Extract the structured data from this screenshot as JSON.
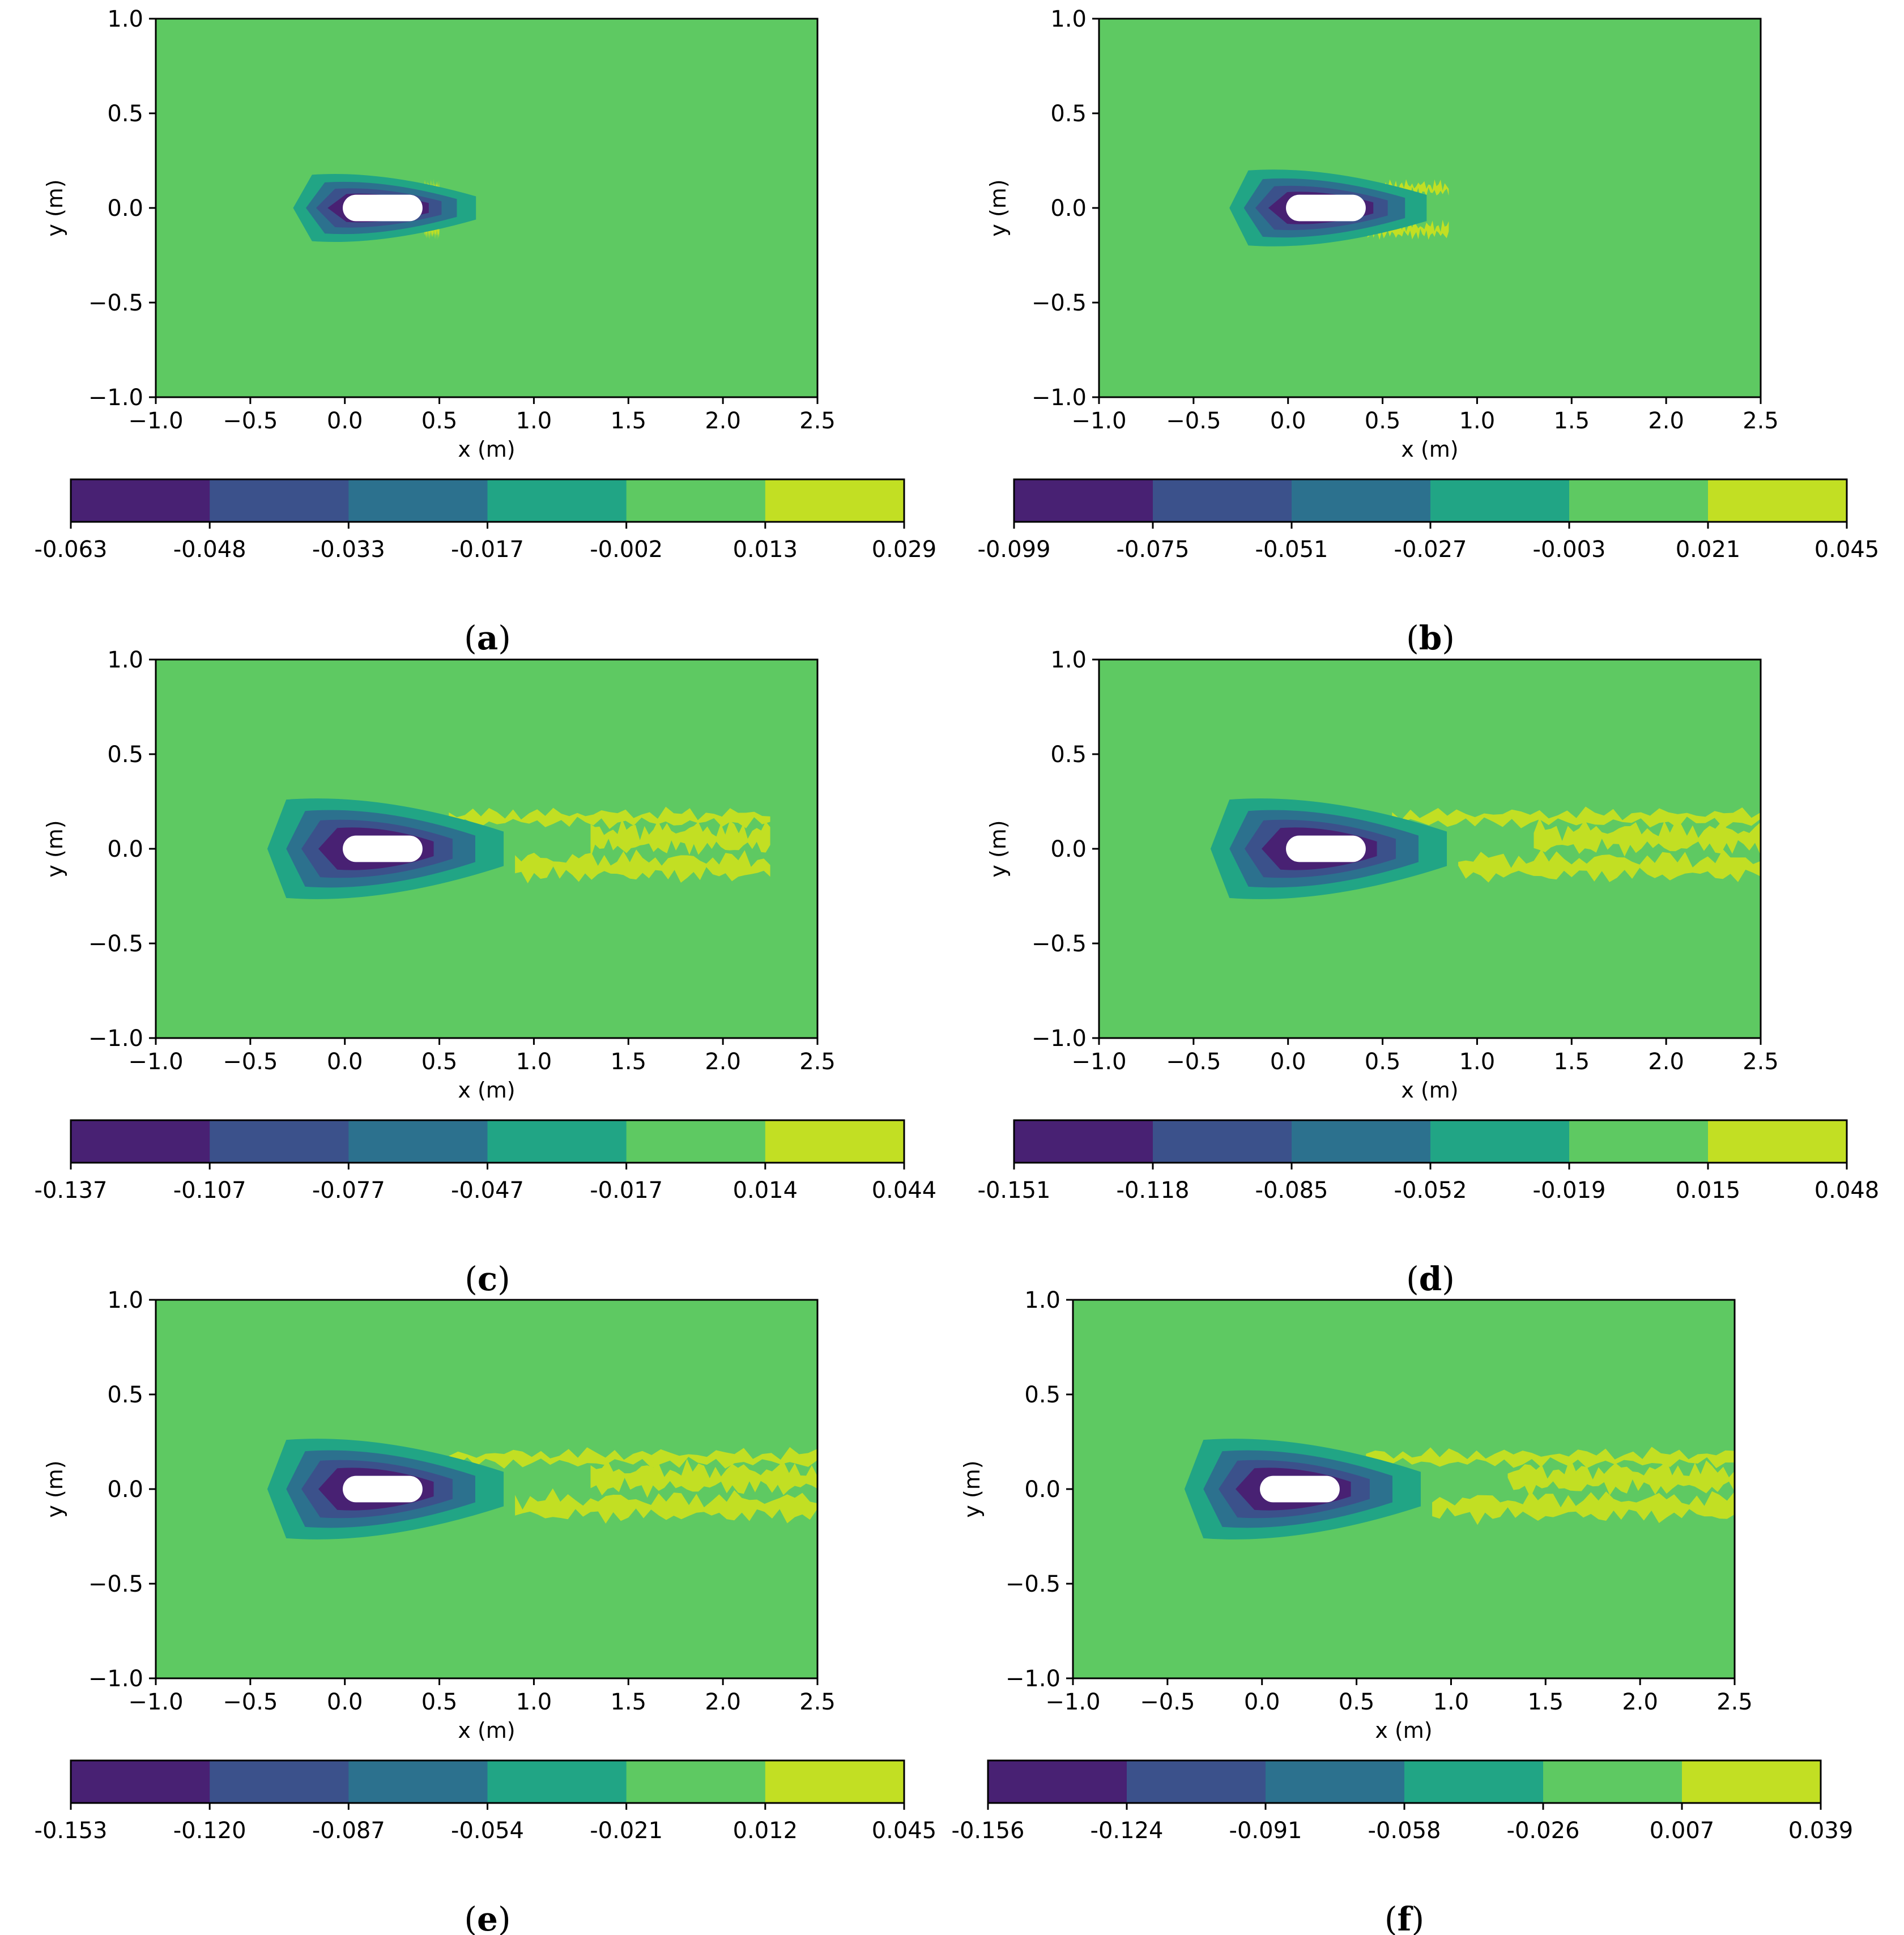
{
  "figure": {
    "palette": [
      "#482173",
      "#3b518b",
      "#2c718e",
      "#21a585",
      "#5ec962",
      "#c2df23"
    ],
    "body_color": "#ffffff"
  },
  "chart_data": [
    {
      "type": "contour",
      "panel_label": "a",
      "xlabel": "x (m)",
      "ylabel": "y (m)",
      "xlim": [
        -1.0,
        2.5
      ],
      "ylim": [
        -1.0,
        1.0
      ],
      "xticks": [
        "−1.0",
        "−0.5",
        "0.0",
        "0.5",
        "1.0",
        "1.5",
        "2.0",
        "2.5"
      ],
      "yticks": [
        "−1.0",
        "−0.5",
        "0.0",
        "0.5",
        "1.0"
      ],
      "colorbar_levels": [
        "-0.063",
        "-0.048",
        "-0.033",
        "-0.017",
        "-0.002",
        "0.013",
        "0.029"
      ],
      "wake_extent_x": 0.5
    },
    {
      "type": "contour",
      "panel_label": "b",
      "xlabel": "x (m)",
      "ylabel": "y (m)",
      "xlim": [
        -1.0,
        2.5
      ],
      "ylim": [
        -1.0,
        1.0
      ],
      "xticks": [
        "−1.0",
        "−0.5",
        "0.0",
        "0.5",
        "1.0",
        "1.5",
        "2.0",
        "2.5"
      ],
      "yticks": [
        "−1.0",
        "−0.5",
        "0.0",
        "0.5",
        "1.0"
      ],
      "colorbar_levels": [
        "-0.099",
        "-0.075",
        "-0.051",
        "-0.027",
        "-0.003",
        "0.021",
        "0.045"
      ],
      "wake_extent_x": 0.85
    },
    {
      "type": "contour",
      "panel_label": "c",
      "xlabel": "x (m)",
      "ylabel": "y (m)",
      "xlim": [
        -1.0,
        2.5
      ],
      "ylim": [
        -1.0,
        1.0
      ],
      "xticks": [
        "−1.0",
        "−0.5",
        "0.0",
        "0.5",
        "1.0",
        "1.5",
        "2.0",
        "2.5"
      ],
      "yticks": [
        "−1.0",
        "−0.5",
        "0.0",
        "0.5",
        "1.0"
      ],
      "colorbar_levels": [
        "-0.137",
        "-0.107",
        "-0.077",
        "-0.047",
        "-0.017",
        "0.014",
        "0.044"
      ],
      "wake_extent_x": 2.25
    },
    {
      "type": "contour",
      "panel_label": "d",
      "xlabel": "x (m)",
      "ylabel": "y (m)",
      "xlim": [
        -1.0,
        2.5
      ],
      "ylim": [
        -1.0,
        1.0
      ],
      "xticks": [
        "−1.0",
        "−0.5",
        "0.0",
        "0.5",
        "1.0",
        "1.5",
        "2.0",
        "2.5"
      ],
      "yticks": [
        "−1.0",
        "−0.5",
        "0.0",
        "0.5",
        "1.0"
      ],
      "colorbar_levels": [
        "-0.151",
        "-0.118",
        "-0.085",
        "-0.052",
        "-0.019",
        "0.015",
        "0.048"
      ],
      "wake_extent_x": 2.5
    },
    {
      "type": "contour",
      "panel_label": "e",
      "xlabel": "x (m)",
      "ylabel": "y (m)",
      "xlim": [
        -1.0,
        2.5
      ],
      "ylim": [
        -1.0,
        1.0
      ],
      "xticks": [
        "−1.0",
        "−0.5",
        "0.0",
        "0.5",
        "1.0",
        "1.5",
        "2.0",
        "2.5"
      ],
      "yticks": [
        "−1.0",
        "−0.5",
        "0.0",
        "0.5",
        "1.0"
      ],
      "colorbar_levels": [
        "-0.153",
        "-0.120",
        "-0.087",
        "-0.054",
        "-0.021",
        "0.012",
        "0.045"
      ],
      "wake_extent_x": 2.5
    },
    {
      "type": "contour",
      "panel_label": "f",
      "xlabel": "x (m)",
      "ylabel": "y (m)",
      "xlim": [
        -1.0,
        2.5
      ],
      "ylim": [
        -1.0,
        1.0
      ],
      "xticks": [
        "−1.0",
        "−0.5",
        "0.0",
        "0.5",
        "1.0",
        "1.5",
        "2.0",
        "2.5"
      ],
      "yticks": [
        "−1.0",
        "−0.5",
        "0.0",
        "0.5",
        "1.0"
      ],
      "colorbar_levels": [
        "-0.156",
        "-0.124",
        "-0.091",
        "-0.058",
        "-0.026",
        "0.007",
        "0.039"
      ],
      "wake_extent_x": 2.5
    }
  ]
}
